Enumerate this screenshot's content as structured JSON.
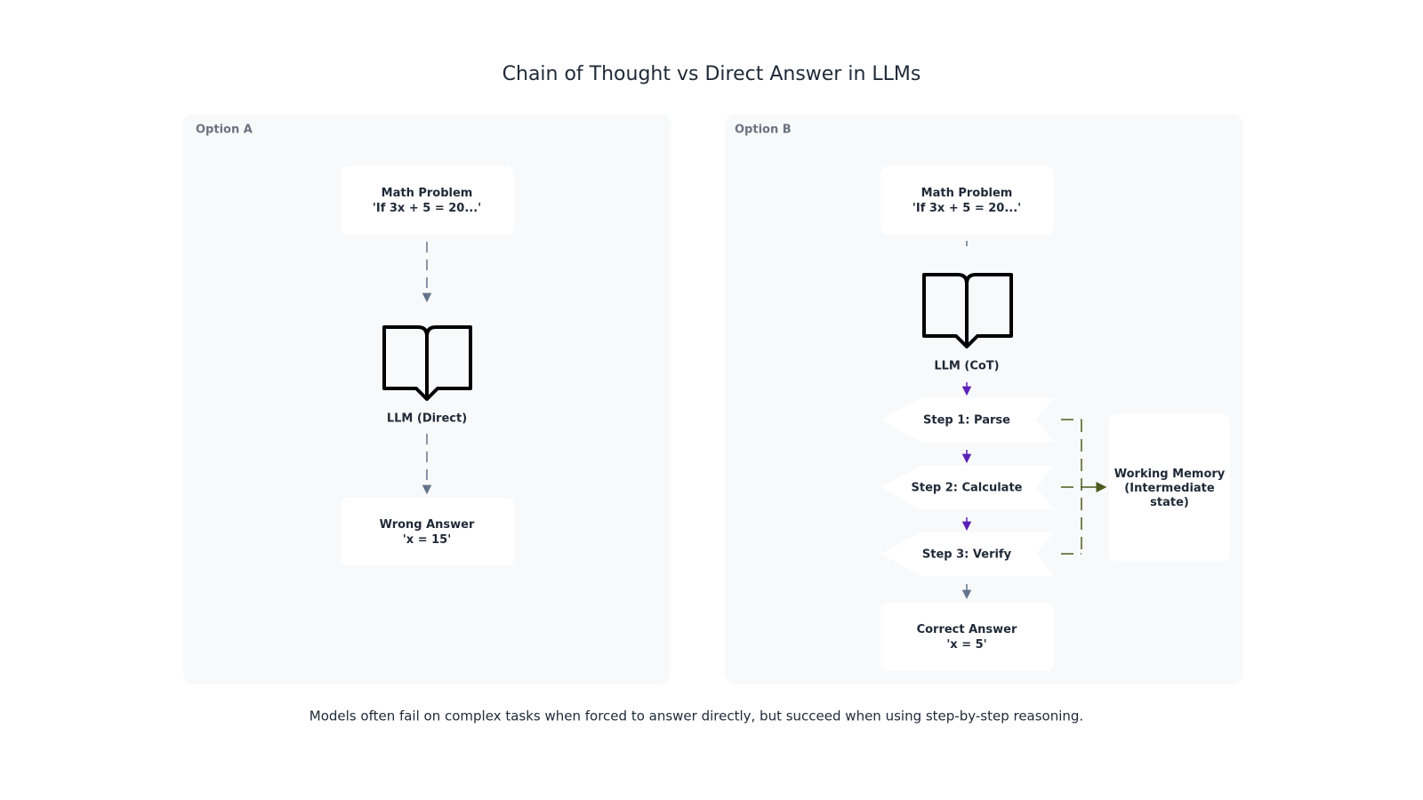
{
  "title": "Chain of Thought vs Direct Answer in LLMs",
  "caption": "Models often fail on complex tasks when forced to answer directly, but succeed when using step-by-step reasoning.",
  "option_a": {
    "label": "Option A",
    "nodes": [
      {
        "lines": [
          "Math Problem",
          "'If 3x + 5 = 20...'"
        ]
      },
      {
        "lines": [
          "LLM (Direct)"
        ]
      },
      {
        "lines": [
          "Wrong Answer",
          "'x = 15'"
        ]
      }
    ]
  },
  "option_b": {
    "label": "Option B",
    "nodes": [
      {
        "lines": [
          "Math Problem",
          "'If 3x + 5 = 20...'"
        ]
      },
      {
        "lines": [
          "LLM (CoT)"
        ]
      },
      {
        "lines": [
          "Step 1: Parse"
        ]
      },
      {
        "lines": [
          "Step 2: Calculate"
        ]
      },
      {
        "lines": [
          "Step 3: Verify"
        ]
      },
      {
        "lines": [
          "Correct Answer",
          "'x = 5'"
        ]
      },
      {
        "lines": [
          "Working Memory",
          "(Intermediate",
          "state)"
        ]
      }
    ]
  }
}
